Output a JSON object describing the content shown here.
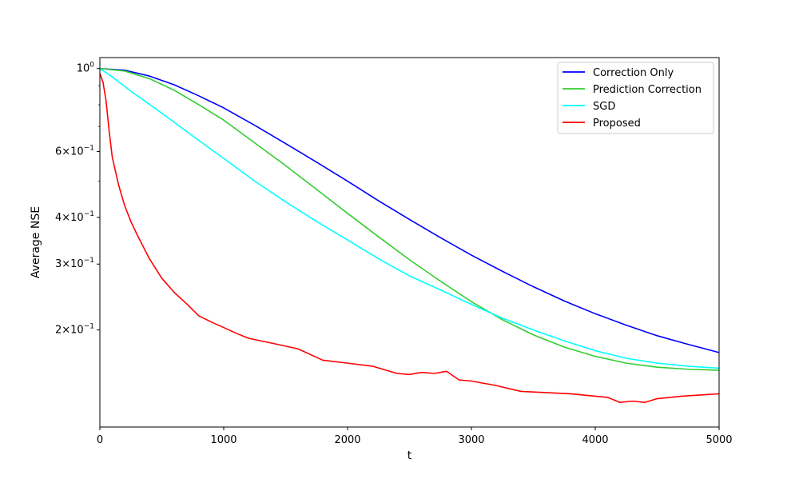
{
  "chart_data": {
    "type": "line",
    "xlabel": "t",
    "ylabel": "Average NSE",
    "x_scale": "linear",
    "y_scale": "log",
    "xlim": [
      0,
      5000
    ],
    "ylim": [
      0.11,
      1.07
    ],
    "x_ticks": [
      {
        "value": 0,
        "label": "0"
      },
      {
        "value": 1000,
        "label": "1000"
      },
      {
        "value": 2000,
        "label": "2000"
      },
      {
        "value": 3000,
        "label": "3000"
      },
      {
        "value": 4000,
        "label": "4000"
      },
      {
        "value": 5000,
        "label": "5000"
      }
    ],
    "y_ticks": [
      {
        "value": 1.0,
        "base": "10",
        "exp": "0"
      },
      {
        "value": 0.6,
        "base": "6×10",
        "exp": "−1"
      },
      {
        "value": 0.4,
        "base": "4×10",
        "exp": "−1"
      },
      {
        "value": 0.3,
        "base": "3×10",
        "exp": "−1"
      },
      {
        "value": 0.2,
        "base": "2×10",
        "exp": "−1"
      }
    ],
    "y_minor_ticks": [
      0.5,
      0.7,
      0.8,
      0.9
    ],
    "grid": false,
    "legend_position": "top-right",
    "series": [
      {
        "name": "Correction Only",
        "color": "#0000ff",
        "x": [
          0,
          200,
          400,
          600,
          800,
          1000,
          1250,
          1500,
          1750,
          2000,
          2250,
          2500,
          2750,
          3000,
          3250,
          3500,
          3750,
          4000,
          4250,
          4500,
          4750,
          5000
        ],
        "y": [
          1.0,
          0.99,
          0.955,
          0.905,
          0.845,
          0.785,
          0.705,
          0.63,
          0.562,
          0.5,
          0.443,
          0.395,
          0.353,
          0.317,
          0.287,
          0.261,
          0.239,
          0.221,
          0.206,
          0.193,
          0.183,
          0.174
        ]
      },
      {
        "name": "Prediction Correction",
        "color": "#32cd32",
        "x": [
          0,
          200,
          400,
          600,
          800,
          1000,
          1250,
          1500,
          1750,
          2000,
          2250,
          2500,
          2750,
          3000,
          3250,
          3500,
          3750,
          4000,
          4250,
          4500,
          4750,
          5000
        ],
        "y": [
          1.0,
          0.985,
          0.94,
          0.875,
          0.8,
          0.728,
          0.633,
          0.55,
          0.475,
          0.41,
          0.355,
          0.308,
          0.27,
          0.238,
          0.213,
          0.194,
          0.18,
          0.17,
          0.163,
          0.159,
          0.157,
          0.156
        ]
      },
      {
        "name": "SGD",
        "color": "#00ffff",
        "x": [
          0,
          100,
          250,
          500,
          750,
          1000,
          1250,
          1500,
          1750,
          2000,
          2250,
          2500,
          2750,
          3000,
          3250,
          3500,
          3750,
          4000,
          4250,
          4500,
          4750,
          5000
        ],
        "y": [
          1.0,
          0.95,
          0.87,
          0.76,
          0.66,
          0.575,
          0.5,
          0.44,
          0.39,
          0.348,
          0.31,
          0.279,
          0.256,
          0.234,
          0.215,
          0.2,
          0.187,
          0.176,
          0.168,
          0.163,
          0.16,
          0.158
        ]
      },
      {
        "name": "Proposed",
        "color": "#ff0000",
        "x": [
          0,
          25,
          50,
          75,
          100,
          150,
          200,
          250,
          300,
          400,
          500,
          600,
          700,
          800,
          900,
          1000,
          1100,
          1200,
          1400,
          1600,
          1800,
          2000,
          2200,
          2400,
          2500,
          2600,
          2700,
          2800,
          2900,
          3000,
          3200,
          3400,
          3600,
          3800,
          4000,
          4100,
          4200,
          4300,
          4400,
          4500,
          4700,
          4850,
          5000
        ],
        "y": [
          0.97,
          0.92,
          0.82,
          0.68,
          0.58,
          0.49,
          0.43,
          0.39,
          0.36,
          0.31,
          0.275,
          0.252,
          0.235,
          0.218,
          0.21,
          0.203,
          0.196,
          0.19,
          0.184,
          0.178,
          0.166,
          0.163,
          0.16,
          0.153,
          0.152,
          0.154,
          0.153,
          0.155,
          0.147,
          0.146,
          0.142,
          0.137,
          0.136,
          0.135,
          0.133,
          0.132,
          0.128,
          0.129,
          0.128,
          0.131,
          0.133,
          0.134,
          0.135
        ]
      }
    ]
  }
}
